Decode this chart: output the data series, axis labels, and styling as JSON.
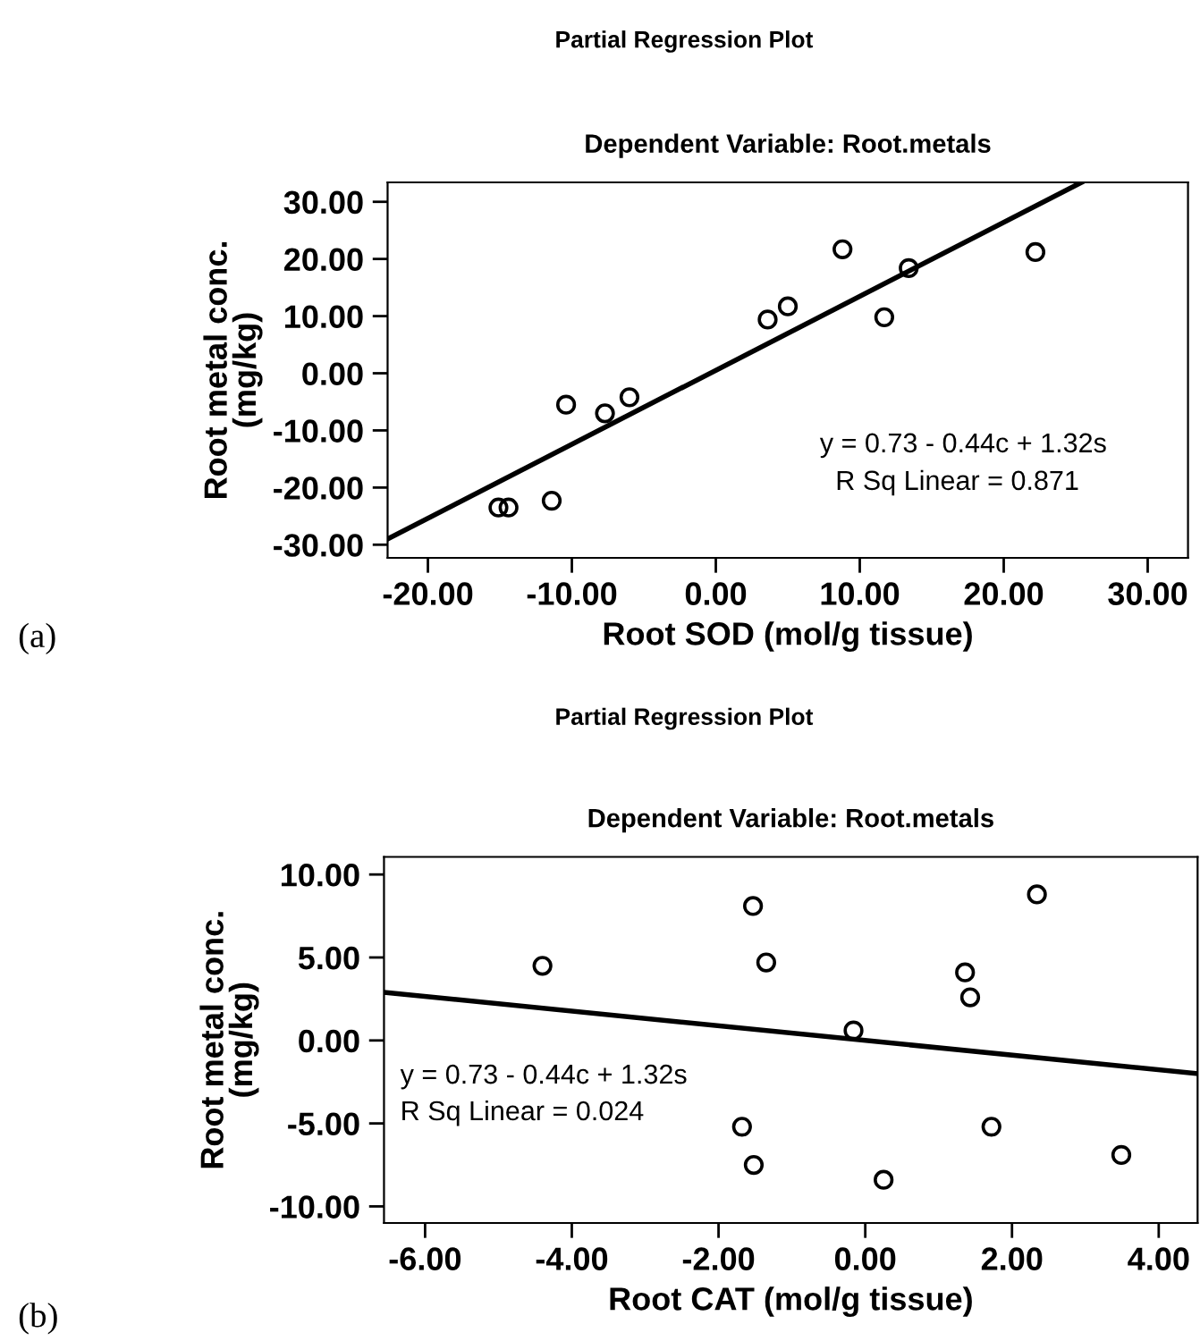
{
  "chart_data": [
    {
      "type": "scatter",
      "title": "Partial Regression Plot",
      "subtitle": "Dependent Variable: Root.metals",
      "xlabel": "Root SOD (mol/g tissue)",
      "ylabel": "Root metal conc.\n(mg/kg)",
      "xlim": [
        -22.8,
        32.8
      ],
      "ylim": [
        -32.3,
        33.4
      ],
      "xticks": [
        {
          "value": -20,
          "label": "-20.00"
        },
        {
          "value": -10,
          "label": "-10.00"
        },
        {
          "value": 0,
          "label": "0.00"
        },
        {
          "value": 10,
          "label": "10.00"
        },
        {
          "value": 20,
          "label": "20.00"
        },
        {
          "value": 30,
          "label": "30.00"
        }
      ],
      "yticks": [
        {
          "value": -30,
          "label": "-30.00"
        },
        {
          "value": -20,
          "label": "-20.00"
        },
        {
          "value": -10,
          "label": "-10.00"
        },
        {
          "value": 0,
          "label": "0.00"
        },
        {
          "value": 10,
          "label": "10.00"
        },
        {
          "value": 20,
          "label": "20.00"
        },
        {
          "value": 30,
          "label": "30.00"
        }
      ],
      "grid": false,
      "legend": false,
      "series": [
        {
          "marker": "circle",
          "color": "#000000",
          "x": [
            -15.1,
            -14.4,
            -11.4,
            -10.4,
            -7.7,
            -6.0,
            3.6,
            5.0,
            8.8,
            11.7,
            13.4,
            22.2
          ],
          "values": [
            -23.5,
            -23.5,
            -22.3,
            -5.5,
            -7.0,
            -4.2,
            9.4,
            11.7,
            21.7,
            9.8,
            18.4,
            21.2
          ]
        },
        {
          "type": "line",
          "color": "#000000",
          "x": [
            -22.8,
            25.4
          ],
          "values": [
            -29.0,
            33.4
          ]
        }
      ],
      "annotations": [
        "y = 0.73 - 0.44c + 1.32s",
        " R Sq Linear = 0.871",
        "(a)"
      ]
    },
    {
      "type": "scatter",
      "title": "Partial Regression Plot",
      "subtitle": "Dependent Variable: Root.metals",
      "xlabel": "Root CAT (mol/g tissue)",
      "ylabel": "Root metal conc.\n(mg/kg)",
      "xlim": [
        -6.56,
        4.53
      ],
      "ylim": [
        -11.0,
        11.06
      ],
      "xticks": [
        {
          "value": -6,
          "label": "-6.00"
        },
        {
          "value": -4,
          "label": "-4.00"
        },
        {
          "value": -2,
          "label": "-2.00"
        },
        {
          "value": 0,
          "label": "0.00"
        },
        {
          "value": 2,
          "label": "2.00"
        },
        {
          "value": 4,
          "label": "4.00"
        }
      ],
      "yticks": [
        {
          "value": -10,
          "label": "-10.00"
        },
        {
          "value": -5,
          "label": "-5.00"
        },
        {
          "value": 0,
          "label": "0.00"
        },
        {
          "value": 5,
          "label": "5.00"
        },
        {
          "value": 10,
          "label": "10.00"
        }
      ],
      "grid": false,
      "legend": false,
      "series": [
        {
          "marker": "circle",
          "color": "#000000",
          "x": [
            -4.4,
            -1.53,
            -1.35,
            -1.68,
            -1.52,
            -0.16,
            0.25,
            1.36,
            1.43,
            1.72,
            2.34,
            3.49
          ],
          "values": [
            4.5,
            8.1,
            4.7,
            -5.2,
            -7.5,
            0.6,
            -8.4,
            4.1,
            2.6,
            -5.2,
            8.8,
            -6.9
          ]
        },
        {
          "type": "line",
          "color": "#000000",
          "x": [
            -6.56,
            4.53
          ],
          "values": [
            2.9,
            -2.0
          ]
        }
      ],
      "annotations": [
        "y = 0.73 - 0.44c + 1.32s",
        "R Sq Linear = 0.024",
        "(b)"
      ]
    }
  ]
}
